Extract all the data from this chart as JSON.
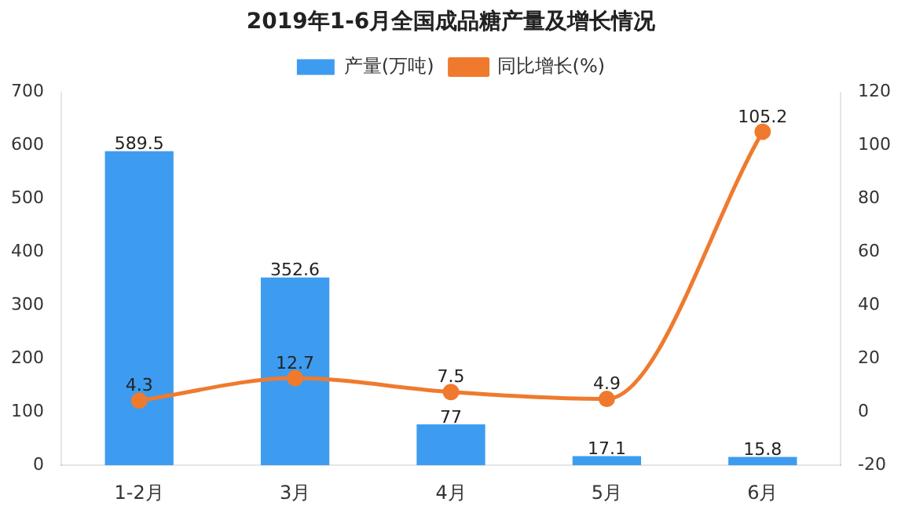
{
  "chart_data": {
    "type": "bar",
    "title": "2019年1-6月全国成品糖产量及增长情况",
    "categories": [
      "1-2月",
      "3月",
      "4月",
      "5月",
      "6月"
    ],
    "series": [
      {
        "name": "产量(万吨)",
        "color": "#3d9cf0",
        "values": [
          589.5,
          352.6,
          77,
          17.1,
          15.8
        ]
      },
      {
        "name": "同比增长(%)",
        "type": "line",
        "axis": "y2",
        "color": "#ef7a2e",
        "values": [
          4.3,
          12.7,
          7.5,
          4.9,
          105.2
        ]
      }
    ],
    "ylim": [
      0,
      700
    ],
    "yticks": [
      0,
      100,
      200,
      300,
      400,
      500,
      600,
      700
    ],
    "y2lim": [
      -20,
      120
    ],
    "y2ticks": [
      -20,
      0,
      20,
      40,
      60,
      80,
      100,
      120
    ],
    "data_labels": true,
    "legend": "top",
    "marker": "circle",
    "grid": false
  }
}
